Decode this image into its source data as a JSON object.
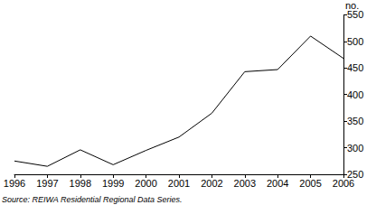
{
  "chart_data": {
    "type": "line",
    "y_label": "no.",
    "source": "Source: REIWA Residential Regional Data Series.",
    "categories": [
      "1996",
      "1997",
      "1998",
      "1999",
      "2000",
      "2001",
      "2002",
      "2003",
      "2004",
      "2005",
      "2006"
    ],
    "values": [
      275,
      265,
      296,
      268,
      295,
      320,
      365,
      443,
      447,
      510,
      468
    ],
    "color": "#000000",
    "ylim": [
      250,
      550
    ],
    "yticks": [
      250,
      300,
      350,
      400,
      450,
      500,
      550
    ],
    "grid": false
  }
}
